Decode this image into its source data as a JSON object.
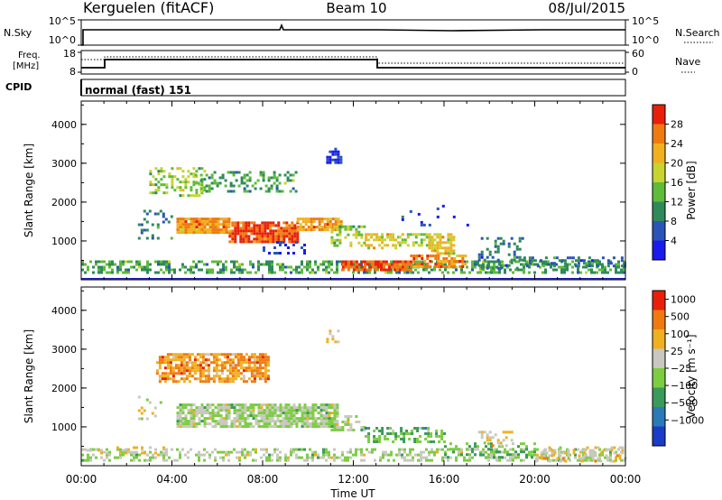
{
  "header": {
    "station": "Kerguelen (fitACF)",
    "beam": "Beam 10",
    "date": "08/Jul/2015"
  },
  "aux_panels": {
    "nsky_label": "N.Sky",
    "nsearch_label": "N.Search",
    "freq_label_line1": "Freq.",
    "freq_label_line2": "[MHz]",
    "nave_label": "Nave",
    "cpid_label": "CPID",
    "cpid_value": "normal (fast) 151",
    "noise_left_ticks": [
      "10^5",
      "10^0"
    ],
    "noise_right_ticks": [
      "10^5",
      "10^0"
    ],
    "freq_ticks": [
      "18",
      "8"
    ],
    "nave_ticks": [
      "60",
      "0"
    ]
  },
  "chart_data": [
    {
      "type": "heatmap",
      "panel": "power",
      "ylabel": "Slant Range [km]",
      "y_ticks": [
        "4000",
        "3000",
        "2000",
        "1000"
      ],
      "colorbar_label": "Power [dB]",
      "colorbar_ticks": [
        "28",
        "24",
        "20",
        "16",
        "12",
        "8",
        "4"
      ],
      "colorbar_colors": [
        "#1a1aee",
        "#2a55b8",
        "#2f8a5a",
        "#5fbb3a",
        "#c8d430",
        "#f0b020",
        "#f07a10",
        "#e8200a"
      ],
      "ylim": [
        0,
        4600
      ],
      "xlim": [
        0,
        24
      ],
      "x_ticks": [
        "00:00",
        "04:00",
        "08:00",
        "12:00",
        "16:00",
        "20:00",
        "00:00"
      ],
      "xlabel": "Time UT"
    },
    {
      "type": "heatmap",
      "panel": "velocity",
      "ylabel": "Slant Range [km]",
      "y_ticks": [
        "4000",
        "3000",
        "2000",
        "1000"
      ],
      "colorbar_label": "Velocity [m s⁻¹]",
      "colorbar_ticks": [
        "1000",
        "500",
        "100",
        "25",
        "−25",
        "−100",
        "−500",
        "−1000"
      ],
      "colorbar_colors": [
        "#1a3cc8",
        "#2a7ab8",
        "#3a9a5a",
        "#7ccd40",
        "#c8c8c0",
        "#f0b020",
        "#f07a10",
        "#e8200a"
      ],
      "ylim": [
        0,
        4600
      ],
      "xlim": [
        0,
        24
      ],
      "x_ticks": [
        "00:00",
        "04:00",
        "08:00",
        "12:00",
        "16:00",
        "20:00",
        "00:00"
      ],
      "xlabel": "Time UT"
    }
  ]
}
